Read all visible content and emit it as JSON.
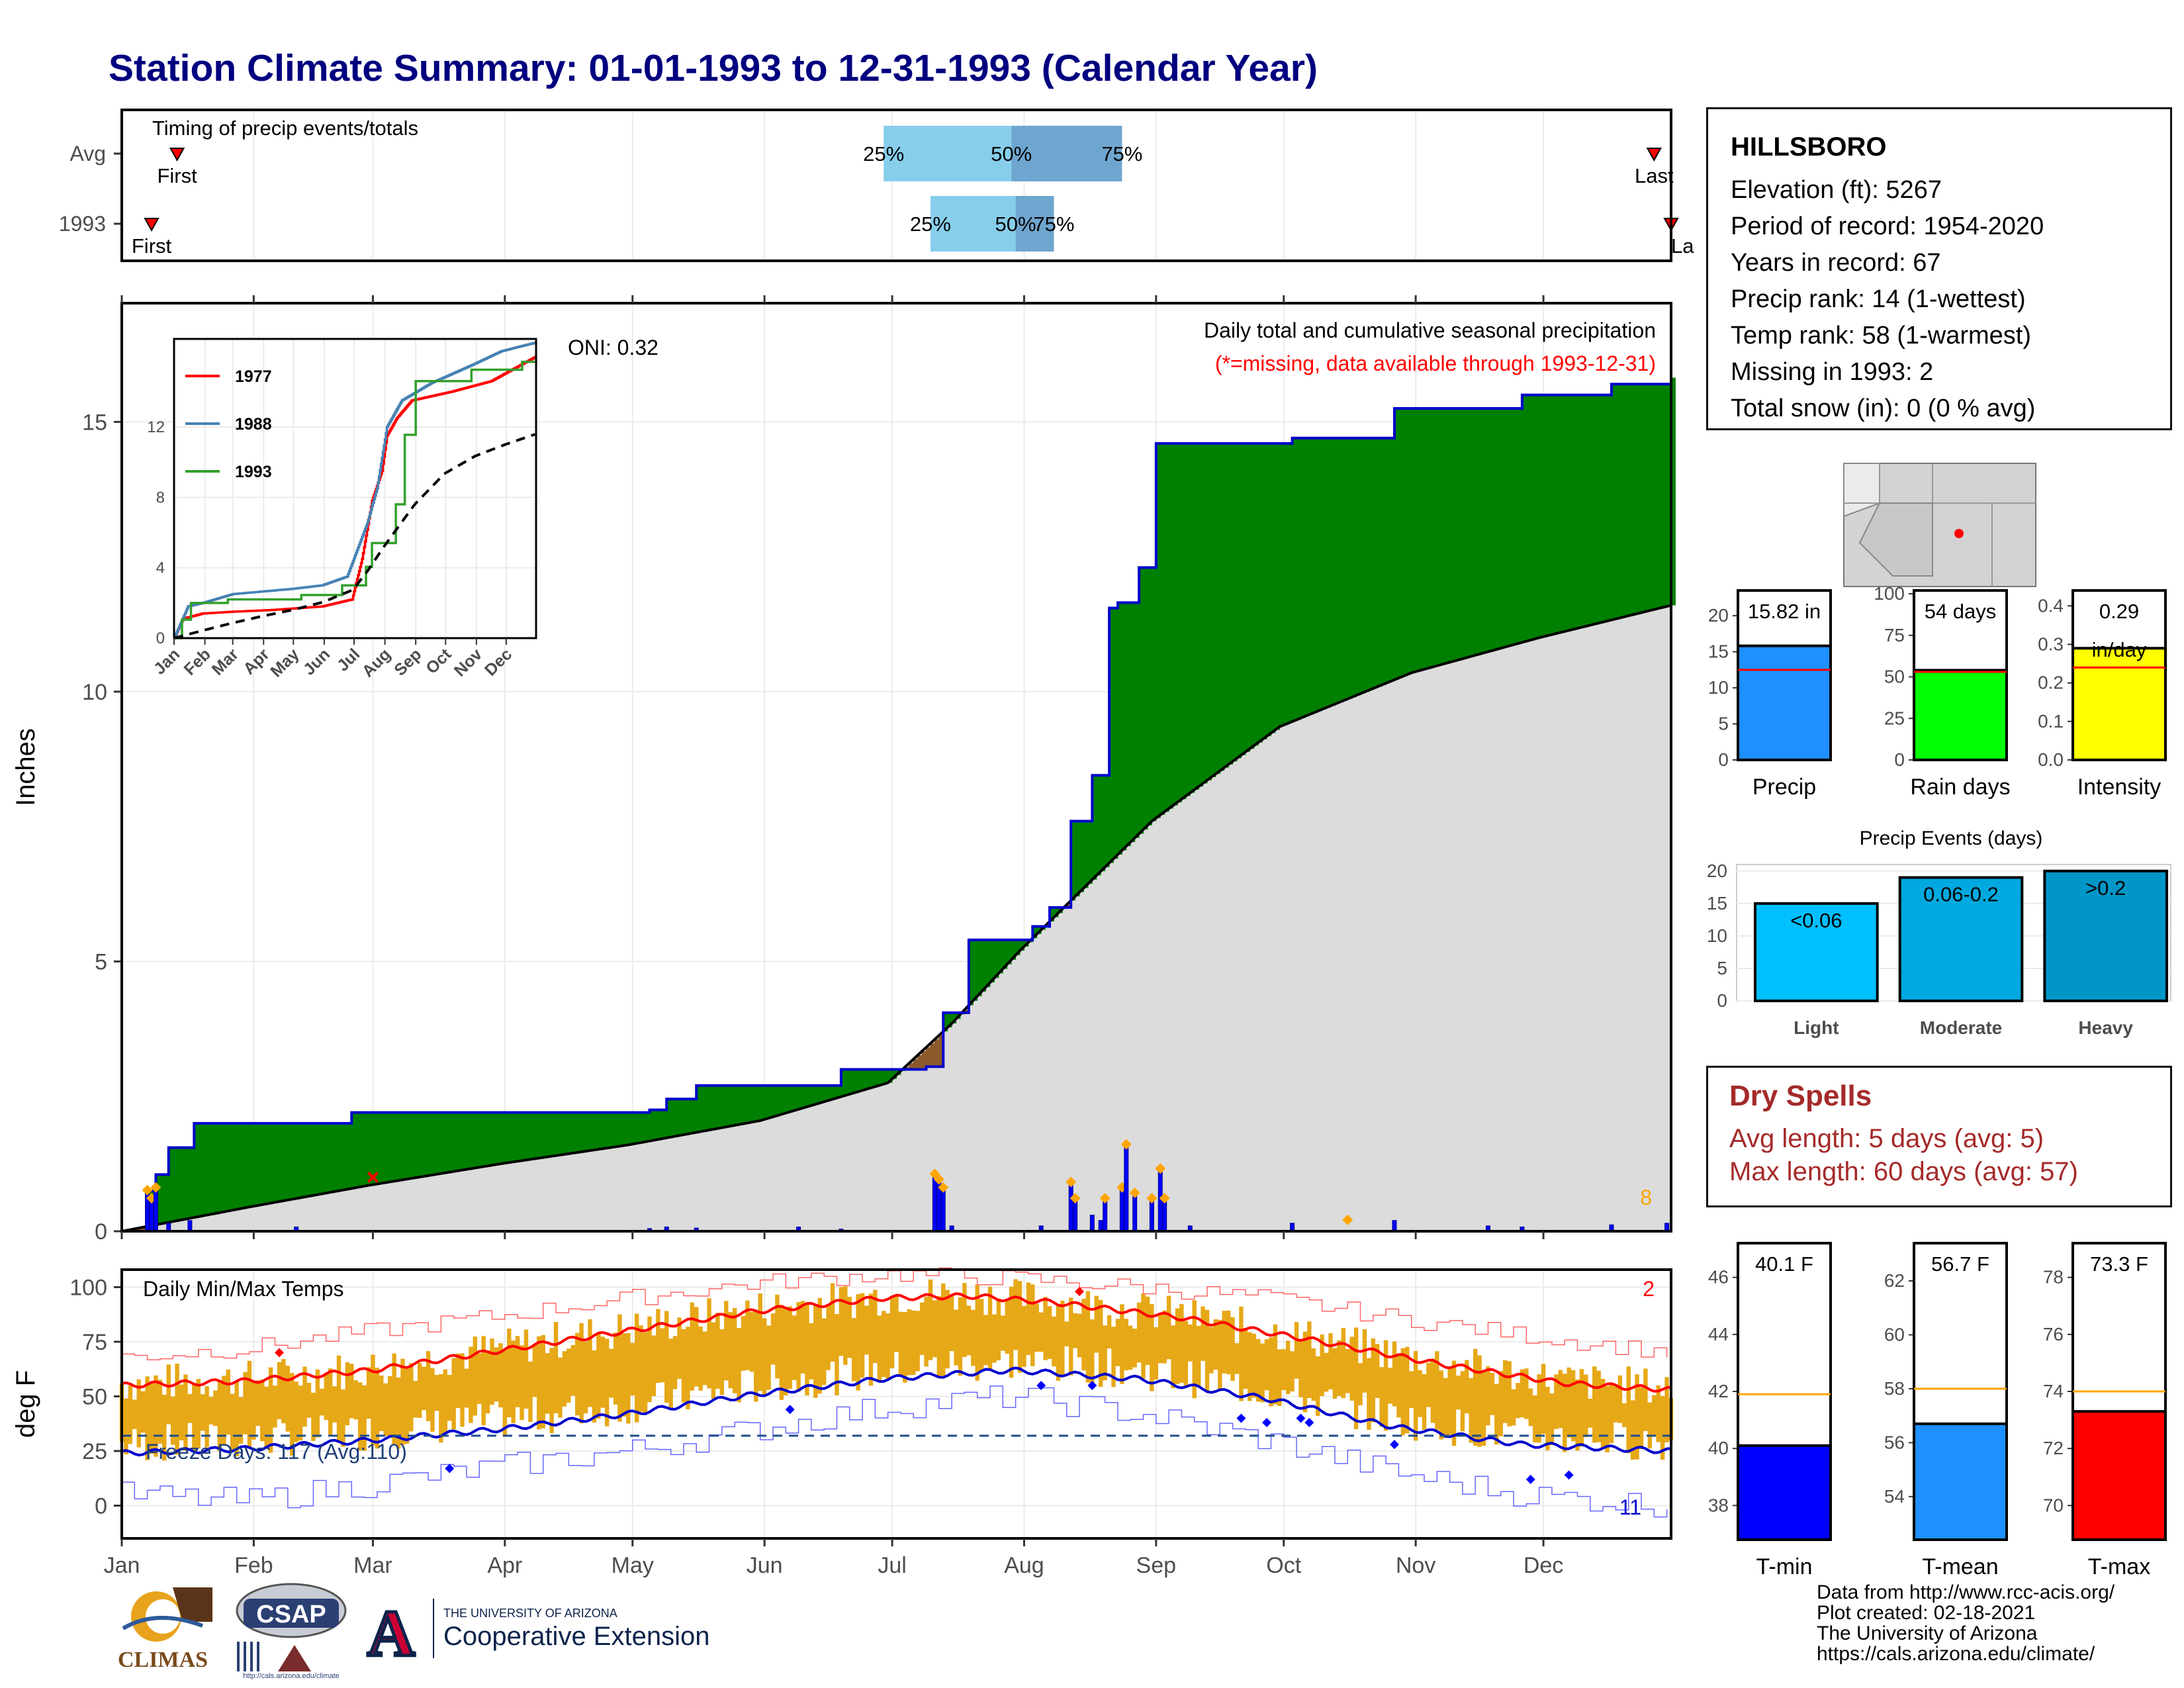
{
  "title": "Station Climate Summary: 01-01-1993 to 12-31-1993 (Calendar Year)",
  "station": {
    "name": "HILLSBORO",
    "lines": [
      "Elevation (ft): 5267",
      "Period of record: 1954-2020",
      "Years in record: 67",
      "Precip rank: 14 (1-wettest)",
      "Temp rank: 58 (1-warmest)",
      "Missing in 1993: 2",
      "Total snow (in): 0 (0 % avg)"
    ]
  },
  "dry_spells": {
    "title": "Dry Spells",
    "avg": "Avg length: 5 days (avg: 5)",
    "max": "Max length: 60 days (avg: 57)"
  },
  "credits": [
    "Data from http://www.rcc-acis.org/",
    "Plot created: 02-18-2021",
    "The University of Arizona",
    "https://cals.arizona.edu/climate/"
  ],
  "logos": {
    "climas": "CLIMAS",
    "csap": "CSAP",
    "csap_url": "http://cals.arizona.edu/climate",
    "ua_small": "THE UNIVERSITY OF ARIZONA",
    "ua_big": "Cooperative Extension",
    "ua_letter": "A"
  },
  "colors": {
    "title": "#00007f",
    "green": "#008000",
    "blue": "#0000ff",
    "red": "#ff0000",
    "gold": "#e6a817",
    "lightblue": "#87ceeb",
    "steelblue": "#6fa6cf",
    "gray": "#dcdcdc",
    "orange": "#ffa500"
  },
  "chart_data": [
    {
      "id": "timing",
      "type": "box",
      "label": "Timing of precip events/totals",
      "rows": [
        {
          "name": "Avg",
          "first": "Jan 14",
          "p25": "Jun 29",
          "p50": "Jul 29",
          "p75": "Aug 24",
          "last": "Dec 27",
          "first_label": "First",
          "last_label": "Last"
        },
        {
          "name": "1993",
          "first": "Jan 8",
          "p25": "Jul 10",
          "p50": "Jul 30",
          "p75": "Aug 8",
          "last": "Dec 31",
          "first_label": "First",
          "last_label": "La"
        }
      ],
      "quartile_labels": [
        "25%",
        "50%",
        "75%"
      ]
    },
    {
      "id": "precip",
      "type": "area",
      "title": "Daily total and cumulative seasonal precipitation",
      "subtitle": "(*=missing, data available through 1993-12-31)",
      "oni": "ONI: 0.32",
      "ylabel": "Inches",
      "ylim": [
        0,
        17.2
      ],
      "yticks": [
        0,
        5,
        10,
        15
      ],
      "months": [
        "Jan",
        "Feb",
        "Mar",
        "Apr",
        "May",
        "Jun",
        "Jul",
        "Aug",
        "Sep",
        "Oct",
        "Nov",
        "Dec"
      ],
      "cumulative_1993": [
        [
          1,
          0
        ],
        [
          7,
          0.75
        ],
        [
          9,
          1.05
        ],
        [
          12,
          1.55
        ],
        [
          18,
          2.0
        ],
        [
          55,
          2.2
        ],
        [
          125,
          2.25
        ],
        [
          129,
          2.45
        ],
        [
          136,
          2.7
        ],
        [
          170,
          3.0
        ],
        [
          190,
          3.05
        ],
        [
          194,
          4.05
        ],
        [
          200,
          5.4
        ],
        [
          215,
          5.65
        ],
        [
          219,
          6.0
        ],
        [
          224,
          7.6
        ],
        [
          229,
          8.45
        ],
        [
          233,
          11.55
        ],
        [
          235,
          11.65
        ],
        [
          240,
          12.3
        ],
        [
          244,
          14.6
        ],
        [
          276,
          14.7
        ],
        [
          300,
          15.25
        ],
        [
          330,
          15.5
        ],
        [
          351,
          15.7
        ],
        [
          365,
          15.82
        ]
      ],
      "cumulative_avg": [
        [
          1,
          0
        ],
        [
          31,
          0.45
        ],
        [
          59,
          0.85
        ],
        [
          90,
          1.25
        ],
        [
          120,
          1.6
        ],
        [
          151,
          2.05
        ],
        [
          181,
          2.75
        ],
        [
          196,
          3.85
        ],
        [
          212,
          5.2
        ],
        [
          243,
          7.6
        ],
        [
          273,
          9.35
        ],
        [
          304,
          10.35
        ],
        [
          334,
          11.0
        ],
        [
          365,
          11.6
        ]
      ],
      "daily_bars": [
        [
          7,
          0.75
        ],
        [
          8,
          0.6
        ],
        [
          9,
          0.8
        ],
        [
          12,
          0.15
        ],
        [
          17,
          0.2
        ],
        [
          42,
          0.08
        ],
        [
          125,
          0.05
        ],
        [
          129,
          0.08
        ],
        [
          136,
          0.06
        ],
        [
          160,
          0.08
        ],
        [
          170,
          0.04
        ],
        [
          192,
          1.05
        ],
        [
          193,
          0.95
        ],
        [
          194,
          0.8
        ],
        [
          196,
          0.1
        ],
        [
          217,
          0.1
        ],
        [
          224,
          0.9
        ],
        [
          225,
          0.6
        ],
        [
          229,
          0.3
        ],
        [
          231,
          0.2
        ],
        [
          232,
          0.6
        ],
        [
          236,
          0.8
        ],
        [
          237,
          1.6
        ],
        [
          239,
          0.7
        ],
        [
          243,
          0.6
        ],
        [
          245,
          1.15
        ],
        [
          246,
          0.6
        ],
        [
          252,
          0.1
        ],
        [
          276,
          0.15
        ],
        [
          300,
          0.2
        ],
        [
          322,
          0.1
        ],
        [
          330,
          0.08
        ],
        [
          351,
          0.12
        ],
        [
          364,
          0.15
        ]
      ],
      "count_label": "8",
      "inset": {
        "ylim": [
          0,
          17
        ],
        "yticks": [
          0,
          4,
          8,
          12
        ],
        "series": [
          {
            "name": "1977",
            "color": "#ff0000",
            "values": [
              [
                1,
                0
              ],
              [
                10,
                1.1
              ],
              [
                30,
                1.4
              ],
              [
                60,
                1.5
              ],
              [
                100,
                1.6
              ],
              [
                150,
                1.8
              ],
              [
                180,
                2.2
              ],
              [
                190,
                4.5
              ],
              [
                200,
                7.8
              ],
              [
                210,
                9.5
              ],
              [
                215,
                11.5
              ],
              [
                225,
                12.5
              ],
              [
                240,
                13.5
              ],
              [
                280,
                14.0
              ],
              [
                320,
                14.6
              ],
              [
                365,
                16.0
              ]
            ]
          },
          {
            "name": "1988",
            "color": "#4682b4",
            "values": [
              [
                1,
                0
              ],
              [
                15,
                1.8
              ],
              [
                30,
                2.0
              ],
              [
                60,
                2.5
              ],
              [
                120,
                2.8
              ],
              [
                150,
                3.0
              ],
              [
                175,
                3.5
              ],
              [
                185,
                5.0
              ],
              [
                195,
                6.5
              ],
              [
                205,
                8.5
              ],
              [
                215,
                12.0
              ],
              [
                230,
                13.5
              ],
              [
                260,
                14.5
              ],
              [
                300,
                15.5
              ],
              [
                330,
                16.3
              ],
              [
                365,
                16.8
              ]
            ]
          },
          {
            "name": "1993",
            "color": "#33a02c",
            "values": [
              [
                1,
                0
              ],
              [
                9,
                1.05
              ],
              [
                18,
                2.0
              ],
              [
                55,
                2.2
              ],
              [
                129,
                2.45
              ],
              [
                170,
                3.0
              ],
              [
                194,
                4.05
              ],
              [
                200,
                5.4
              ],
              [
                224,
                7.6
              ],
              [
                233,
                11.55
              ],
              [
                244,
                14.6
              ],
              [
                300,
                15.25
              ],
              [
                351,
                15.7
              ],
              [
                365,
                15.82
              ]
            ]
          },
          {
            "name": "avg",
            "color": "#000000",
            "values": [
              [
                1,
                0
              ],
              [
                31,
                0.45
              ],
              [
                59,
                0.85
              ],
              [
                90,
                1.25
              ],
              [
                120,
                1.6
              ],
              [
                151,
                2.05
              ],
              [
                181,
                2.75
              ],
              [
                196,
                3.85
              ],
              [
                212,
                5.2
              ],
              [
                243,
                7.6
              ],
              [
                273,
                9.35
              ],
              [
                304,
                10.35
              ],
              [
                334,
                11.0
              ],
              [
                365,
                11.6
              ]
            ]
          }
        ]
      }
    },
    {
      "id": "temps",
      "type": "line",
      "title": "Daily Min/Max Temps",
      "ylabel": "deg F",
      "ylim": [
        -15,
        108
      ],
      "yticks": [
        0,
        25,
        50,
        75,
        100
      ],
      "freeze_label": "Freeze Days: 117 (Avg:110)",
      "freeze_line": 32,
      "count_top": "2",
      "count_bottom": "11",
      "avg_max": [
        [
          1,
          55
        ],
        [
          30,
          57
        ],
        [
          60,
          62
        ],
        [
          90,
          71
        ],
        [
          120,
          80
        ],
        [
          150,
          89
        ],
        [
          180,
          95
        ],
        [
          200,
          96
        ],
        [
          220,
          93
        ],
        [
          250,
          86
        ],
        [
          280,
          76
        ],
        [
          310,
          65
        ],
        [
          340,
          56
        ],
        [
          365,
          53
        ]
      ],
      "avg_min": [
        [
          1,
          24
        ],
        [
          30,
          26
        ],
        [
          60,
          30
        ],
        [
          90,
          35
        ],
        [
          120,
          42
        ],
        [
          150,
          51
        ],
        [
          180,
          58
        ],
        [
          210,
          62
        ],
        [
          240,
          58
        ],
        [
          270,
          49
        ],
        [
          300,
          36
        ],
        [
          330,
          28
        ],
        [
          365,
          25
        ]
      ],
      "record_max": [
        [
          1,
          68
        ],
        [
          30,
          72
        ],
        [
          60,
          80
        ],
        [
          90,
          87
        ],
        [
          120,
          95
        ],
        [
          150,
          102
        ],
        [
          180,
          106
        ],
        [
          210,
          104
        ],
        [
          240,
          100
        ],
        [
          270,
          95
        ],
        [
          300,
          86
        ],
        [
          330,
          78
        ],
        [
          365,
          70
        ]
      ],
      "record_min": [
        [
          1,
          5
        ],
        [
          30,
          2
        ],
        [
          60,
          10
        ],
        [
          90,
          18
        ],
        [
          120,
          25
        ],
        [
          150,
          35
        ],
        [
          180,
          45
        ],
        [
          210,
          50
        ],
        [
          240,
          42
        ],
        [
          270,
          30
        ],
        [
          300,
          15
        ],
        [
          330,
          5
        ],
        [
          365,
          0
        ]
      ]
    },
    {
      "id": "precip-bars",
      "type": "bar",
      "categories": [
        "Precip",
        "Rain days",
        "Intensity"
      ],
      "values": [
        15.82,
        54,
        0.29
      ],
      "averages": [
        12.5,
        53,
        0.24
      ],
      "value_labels": [
        "15.82 in",
        "54 days",
        "0.29\nin/day"
      ],
      "ylims": [
        [
          0,
          23.5
        ],
        [
          0,
          102
        ],
        [
          0,
          0.44
        ]
      ],
      "yticks": [
        [
          0,
          5,
          10,
          15,
          20
        ],
        [
          0,
          25,
          50,
          75,
          100
        ],
        [
          0.0,
          0.1,
          0.2,
          0.3,
          0.4
        ]
      ],
      "tick_labels": [
        [
          "0",
          "5",
          "10",
          "15",
          "20"
        ],
        [
          "0",
          "25",
          "50",
          "75",
          "100"
        ],
        [
          "0.0",
          "0.1",
          "0.2",
          "0.3",
          "0.4"
        ]
      ],
      "colors": [
        "#1e90ff",
        "#00ff00",
        "#ffff00"
      ]
    },
    {
      "id": "precip-events",
      "type": "bar",
      "title": "Precip Events (days)",
      "categories": [
        "Light",
        "Moderate",
        "Heavy"
      ],
      "values": [
        15,
        19,
        20
      ],
      "value_labels": [
        "<0.06",
        "0.06-0.2",
        ">0.2"
      ],
      "ylim": [
        0,
        21
      ],
      "yticks": [
        0,
        5,
        10,
        15,
        20
      ],
      "colors": [
        "#00bfff",
        "#00a8e0",
        "#0096c8"
      ]
    },
    {
      "id": "temp-bars",
      "type": "bar",
      "categories": [
        "T-min",
        "T-mean",
        "T-max"
      ],
      "values": [
        40.1,
        56.7,
        73.3
      ],
      "averages": [
        41.9,
        58.0,
        74.0
      ],
      "value_labels": [
        "40.1 F",
        "56.7 F",
        "73.3 F"
      ],
      "ylims": [
        [
          36.8,
          47.2
        ],
        [
          52.4,
          63.4
        ],
        [
          68.8,
          79.2
        ]
      ],
      "yticks": [
        [
          38,
          40,
          42,
          44,
          46
        ],
        [
          54,
          56,
          58,
          60,
          62
        ],
        [
          70,
          72,
          74,
          76,
          78
        ]
      ],
      "colors": [
        "#0000ff",
        "#1e90ff",
        "#ff0000"
      ]
    }
  ]
}
